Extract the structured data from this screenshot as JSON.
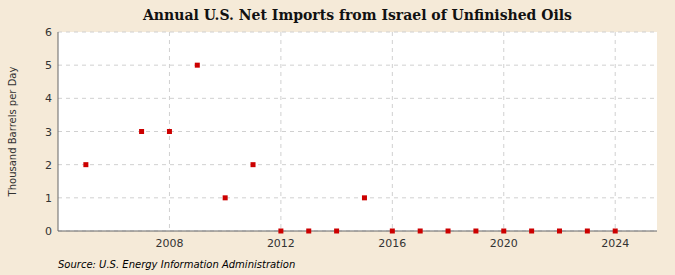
{
  "chart_data": {
    "type": "scatter",
    "title": "Annual U.S. Net Imports from Israel of Unfinished Oils",
    "ylabel": "Thousand Barrels per Day",
    "source": "Source: U.S. Energy Information Administration",
    "x": [
      2005,
      2007,
      2008,
      2009,
      2010,
      2011,
      2012,
      2013,
      2014,
      2015,
      2016,
      2017,
      2018,
      2019,
      2020,
      2021,
      2022,
      2023,
      2024
    ],
    "values": [
      2,
      3,
      3,
      5,
      1,
      2,
      0,
      0,
      0,
      1,
      0,
      0,
      0,
      0,
      0,
      0,
      0,
      0,
      0
    ],
    "color": "#cc0000",
    "marker": "square",
    "xlim": [
      2004,
      2025.5
    ],
    "ylim": [
      0,
      6
    ],
    "xticks": [
      2008,
      2012,
      2016,
      2020,
      2024
    ],
    "yticks": [
      0,
      1,
      2,
      3,
      4,
      5,
      6
    ],
    "grid": true
  }
}
